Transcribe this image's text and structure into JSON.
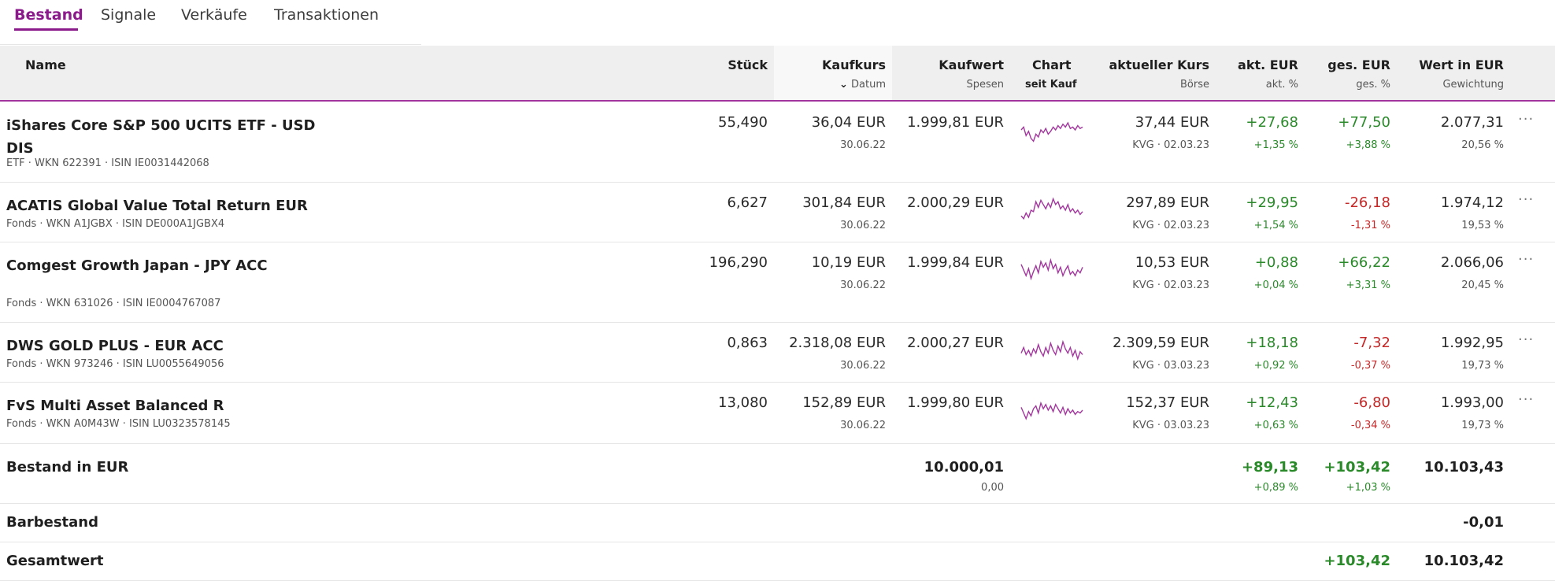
{
  "tabs": [
    {
      "label": "Bestand",
      "active": true
    },
    {
      "label": "Signale",
      "active": false
    },
    {
      "label": "Verkäufe",
      "active": false
    },
    {
      "label": "Transaktionen",
      "active": false
    }
  ],
  "header": {
    "name": "Name",
    "stueck": "Stück",
    "kaufkurs": "Kaufkurs",
    "datum": "Datum",
    "kaufwert": "Kaufwert",
    "spesen": "Spesen",
    "chart": "Chart",
    "seit_kauf": "seit Kauf",
    "aktueller_kurs": "aktueller Kurs",
    "boerse": "Börse",
    "akt_eur": "akt. EUR",
    "akt_pct": "akt. %",
    "ges_eur": "ges. EUR",
    "ges_pct": "ges. %",
    "wert": "Wert in EUR",
    "gewichtung": "Gewichtung"
  },
  "colors": {
    "accent": "#8b1a8b",
    "positive": "#2a8a2a",
    "negative": "#c62828",
    "spark": "#a3369e"
  },
  "holdings": [
    {
      "name": "iShares Core S&P 500 UCITS ETF - USD DIS",
      "meta": "ETF · WKN 622391 · ISIN IE0031442068",
      "stueck": "55,490",
      "kaufkurs": "36,04 EUR",
      "datum": "30.06.22",
      "kaufwert": "1.999,81 EUR",
      "kurs": "37,44 EUR",
      "boerse": "KVG · 02.03.23",
      "akt_eur": "+27,68",
      "akt_pct": "+1,35 %",
      "akt_sign": "pos",
      "ges_eur": "+77,50",
      "ges_pct": "+3,88 %",
      "ges_sign": "pos",
      "wert": "2.077,31",
      "gewichtung": "20,56 %",
      "more": "···",
      "spark": [
        0.5,
        0.6,
        0.3,
        0.45,
        0.2,
        0.1,
        0.35,
        0.25,
        0.5,
        0.4,
        0.55,
        0.35,
        0.45,
        0.6,
        0.5,
        0.65,
        0.55,
        0.7,
        0.6,
        0.75,
        0.55,
        0.6,
        0.5,
        0.65,
        0.55,
        0.6
      ]
    },
    {
      "name": "ACATIS Global Value Total Return EUR",
      "meta": "Fonds · WKN A1JGBX · ISIN DE000A1JGBX4",
      "stueck": "6,627",
      "kaufkurs": "301,84 EUR",
      "datum": "30.06.22",
      "kaufwert": "2.000,29 EUR",
      "kurs": "297,89 EUR",
      "boerse": "KVG · 02.03.23",
      "akt_eur": "+29,95",
      "akt_pct": "+1,54 %",
      "akt_sign": "pos",
      "ges_eur": "-26,18",
      "ges_pct": "-1,31 %",
      "ges_sign": "neg",
      "wert": "1.974,12",
      "gewichtung": "19,53 %",
      "more": "···",
      "spark": [
        0.3,
        0.2,
        0.4,
        0.25,
        0.5,
        0.45,
        0.8,
        0.6,
        0.85,
        0.7,
        0.55,
        0.75,
        0.6,
        0.9,
        0.7,
        0.8,
        0.55,
        0.65,
        0.5,
        0.7,
        0.45,
        0.55,
        0.4,
        0.5,
        0.35,
        0.45
      ]
    },
    {
      "name": "Comgest Growth Japan - JPY ACC",
      "meta": "Fonds · WKN 631026 · ISIN IE0004767087",
      "stueck": "196,290",
      "kaufkurs": "10,19 EUR",
      "datum": "30.06.22",
      "kaufwert": "1.999,84 EUR",
      "kurs": "10,53 EUR",
      "boerse": "KVG · 02.03.23",
      "akt_eur": "+0,88",
      "akt_pct": "+0,04 %",
      "akt_sign": "pos",
      "ges_eur": "+66,22",
      "ges_pct": "+3,31 %",
      "ges_sign": "pos",
      "wert": "2.066,06",
      "gewichtung": "20,45 %",
      "more": "···",
      "spark": [
        0.7,
        0.5,
        0.3,
        0.55,
        0.2,
        0.45,
        0.65,
        0.4,
        0.8,
        0.6,
        0.75,
        0.5,
        0.85,
        0.55,
        0.7,
        0.4,
        0.6,
        0.3,
        0.5,
        0.65,
        0.35,
        0.45,
        0.3,
        0.5,
        0.4,
        0.6
      ]
    },
    {
      "name": "DWS GOLD PLUS - EUR ACC",
      "meta": "Fonds · WKN 973246 · ISIN LU0055649056",
      "stueck": "0,863",
      "kaufkurs": "2.318,08 EUR",
      "datum": "30.06.22",
      "kaufwert": "2.000,27 EUR",
      "kurs": "2.309,59 EUR",
      "boerse": "KVG · 03.03.23",
      "akt_eur": "+18,18",
      "akt_pct": "+0,92 %",
      "akt_sign": "pos",
      "ges_eur": "-7,32",
      "ges_pct": "-0,37 %",
      "ges_sign": "neg",
      "wert": "1.992,95",
      "gewichtung": "19,73 %",
      "more": "···",
      "spark": [
        0.4,
        0.6,
        0.35,
        0.5,
        0.3,
        0.55,
        0.4,
        0.7,
        0.45,
        0.3,
        0.6,
        0.4,
        0.75,
        0.5,
        0.35,
        0.65,
        0.45,
        0.8,
        0.55,
        0.4,
        0.6,
        0.3,
        0.5,
        0.2,
        0.45,
        0.35
      ]
    },
    {
      "name": "FvS Multi Asset Balanced R",
      "meta": "Fonds · WKN A0M43W · ISIN LU0323578145",
      "stueck": "13,080",
      "kaufkurs": "152,89 EUR",
      "datum": "30.06.22",
      "kaufwert": "1.999,80 EUR",
      "kurs": "152,37 EUR",
      "boerse": "KVG · 03.03.23",
      "akt_eur": "+12,43",
      "akt_pct": "+0,63 %",
      "akt_sign": "pos",
      "ges_eur": "-6,80",
      "ges_pct": "-0,34 %",
      "ges_sign": "neg",
      "wert": "1.993,00",
      "gewichtung": "19,73 %",
      "more": "···",
      "spark": [
        0.6,
        0.4,
        0.2,
        0.45,
        0.3,
        0.55,
        0.65,
        0.4,
        0.75,
        0.55,
        0.7,
        0.5,
        0.65,
        0.45,
        0.7,
        0.55,
        0.4,
        0.6,
        0.35,
        0.55,
        0.4,
        0.5,
        0.35,
        0.45,
        0.4,
        0.5
      ]
    }
  ],
  "summary": {
    "bestand_label": "Bestand in EUR",
    "bestand_kaufwert": "10.000,01",
    "bestand_spesen": "0,00",
    "bestand_akt_eur": "+89,13",
    "bestand_akt_pct": "+0,89 %",
    "bestand_ges_eur": "+103,42",
    "bestand_ges_pct": "+1,03 %",
    "bestand_wert": "10.103,43",
    "barbestand_label": "Barbestand",
    "barbestand_wert": "-0,01",
    "gesamtwert_label": "Gesamtwert",
    "gesamtwert_ges_eur": "+103,42",
    "gesamtwert_wert": "10.103,42"
  }
}
